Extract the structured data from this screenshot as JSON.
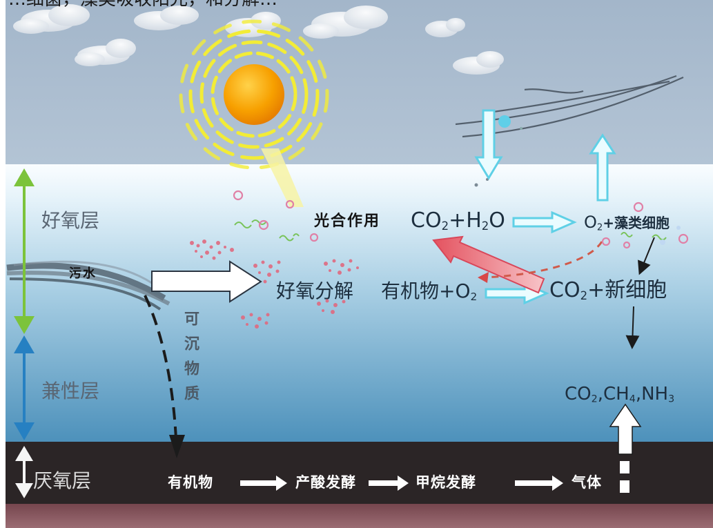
{
  "caption": "…细菌，藻类吸收阳光，和分解…",
  "layers": {
    "aerobic": "好氧层",
    "facultative": "兼性层",
    "anaerobic": "厌氧层"
  },
  "inflow": {
    "sewage": "污水",
    "aerobic_decomposition": "好氧分解"
  },
  "settling": {
    "label": "可沉物质"
  },
  "photosynthesis": {
    "label": "光合作用",
    "reactants": {
      "pre": "CO",
      "sub1": "2",
      "mid": "+H",
      "sub2": "2",
      "post": "O"
    },
    "products": {
      "pre": "O",
      "sub1": "2",
      "post": "+藻类细胞"
    }
  },
  "decomposition": {
    "reactants": {
      "pre": "有机物+O",
      "sub1": "2"
    },
    "products": {
      "pre": "CO",
      "sub1": "2",
      "post": "+新细胞"
    }
  },
  "gases": {
    "a": "CO",
    "a_sub": "2",
    "b": ",CH",
    "b_sub": "4",
    "c": ",NH",
    "c_sub": "3"
  },
  "anaerobic_chain": [
    "有机物",
    "产酸发酵",
    "甲烷发酵",
    "气体"
  ],
  "colors": {
    "sky": "#a9bccf",
    "water_top": "#f3fafd",
    "water_bottom": "#4f93bb",
    "sediment": "#2a2324",
    "sediment_bottom": "#8a5b63",
    "aerobic_arrow": "#7cc33b",
    "facultative_arrow": "#2680c2",
    "sun": "#f5a200",
    "sun_rays": "#f3ee3a",
    "cyan_arrow": "#5fd0e6"
  }
}
